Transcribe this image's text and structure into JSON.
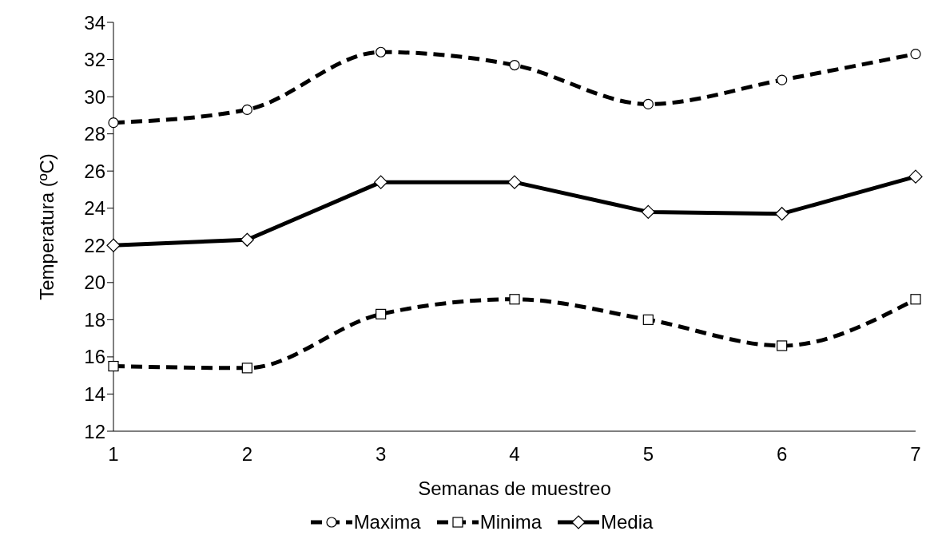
{
  "chart_data": {
    "type": "line",
    "xlabel": "Semanas de muestreo",
    "ylabel": "Temperatura (ºC)",
    "categories": [
      "1",
      "2",
      "3",
      "4",
      "5",
      "6",
      "7"
    ],
    "series": [
      {
        "name": "Maxima",
        "color": "#000000",
        "marker": "circle",
        "line_style": "dashed",
        "values": [
          28.6,
          29.3,
          32.4,
          31.7,
          29.6,
          30.9,
          32.3
        ]
      },
      {
        "name": "Minima",
        "color": "#000000",
        "marker": "square",
        "line_style": "dashed",
        "values": [
          15.5,
          15.4,
          18.3,
          19.1,
          18.0,
          16.6,
          19.1
        ]
      },
      {
        "name": "Media",
        "color": "#000000",
        "marker": "diamond",
        "line_style": "solid",
        "values": [
          22.0,
          22.3,
          25.4,
          25.4,
          23.8,
          23.7,
          25.7
        ]
      }
    ],
    "ylim": [
      12,
      34
    ],
    "yticks": [
      12,
      14,
      16,
      18,
      20,
      22,
      24,
      26,
      28,
      30,
      32,
      34
    ],
    "grid": false,
    "legend": "bottom"
  }
}
